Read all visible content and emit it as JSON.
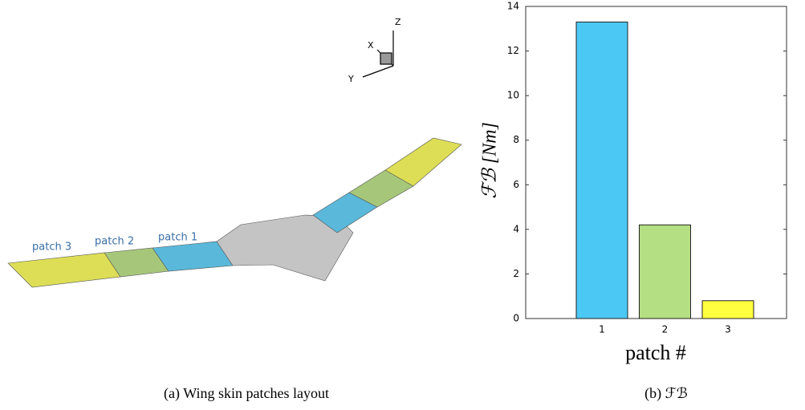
{
  "figure_a": {
    "axes": {
      "x": "X",
      "y": "Y",
      "z": "Z"
    },
    "patch_labels": [
      "patch 3",
      "patch 2",
      "patch 1"
    ],
    "caption": "(a) Wing skin patches layout"
  },
  "chart_data": {
    "type": "bar",
    "caption": "(b) ℱℬ",
    "xlabel": "patch #",
    "ylabel": "ℱℬ [Nm]",
    "categories": [
      "1",
      "2",
      "3"
    ],
    "values": [
      13.3,
      4.2,
      0.8
    ],
    "colors": [
      "#4cc8f4",
      "#b4df82",
      "#ffff40"
    ],
    "ylim": [
      0,
      14
    ],
    "yticks": [
      0,
      2,
      4,
      6,
      8,
      10,
      12,
      14
    ]
  }
}
